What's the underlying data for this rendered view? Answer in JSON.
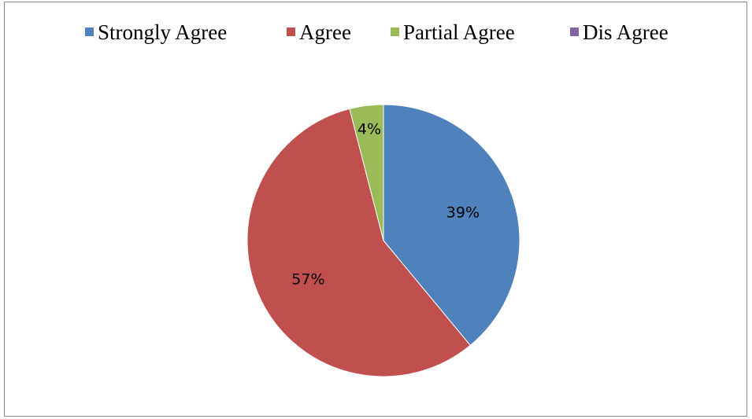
{
  "chart_data": {
    "type": "pie",
    "categories": [
      "Strongly Agree",
      "Agree",
      "Partial Agree",
      "Dis Agree"
    ],
    "values": [
      39,
      57,
      4,
      0
    ],
    "data_labels": [
      "39%",
      "57%",
      "4%",
      ""
    ],
    "colors": [
      "#4f81bd",
      "#c0504d",
      "#9bbb59",
      "#8064a2"
    ],
    "legend_position": "top",
    "start_angle": "12 o'clock, clockwise"
  }
}
